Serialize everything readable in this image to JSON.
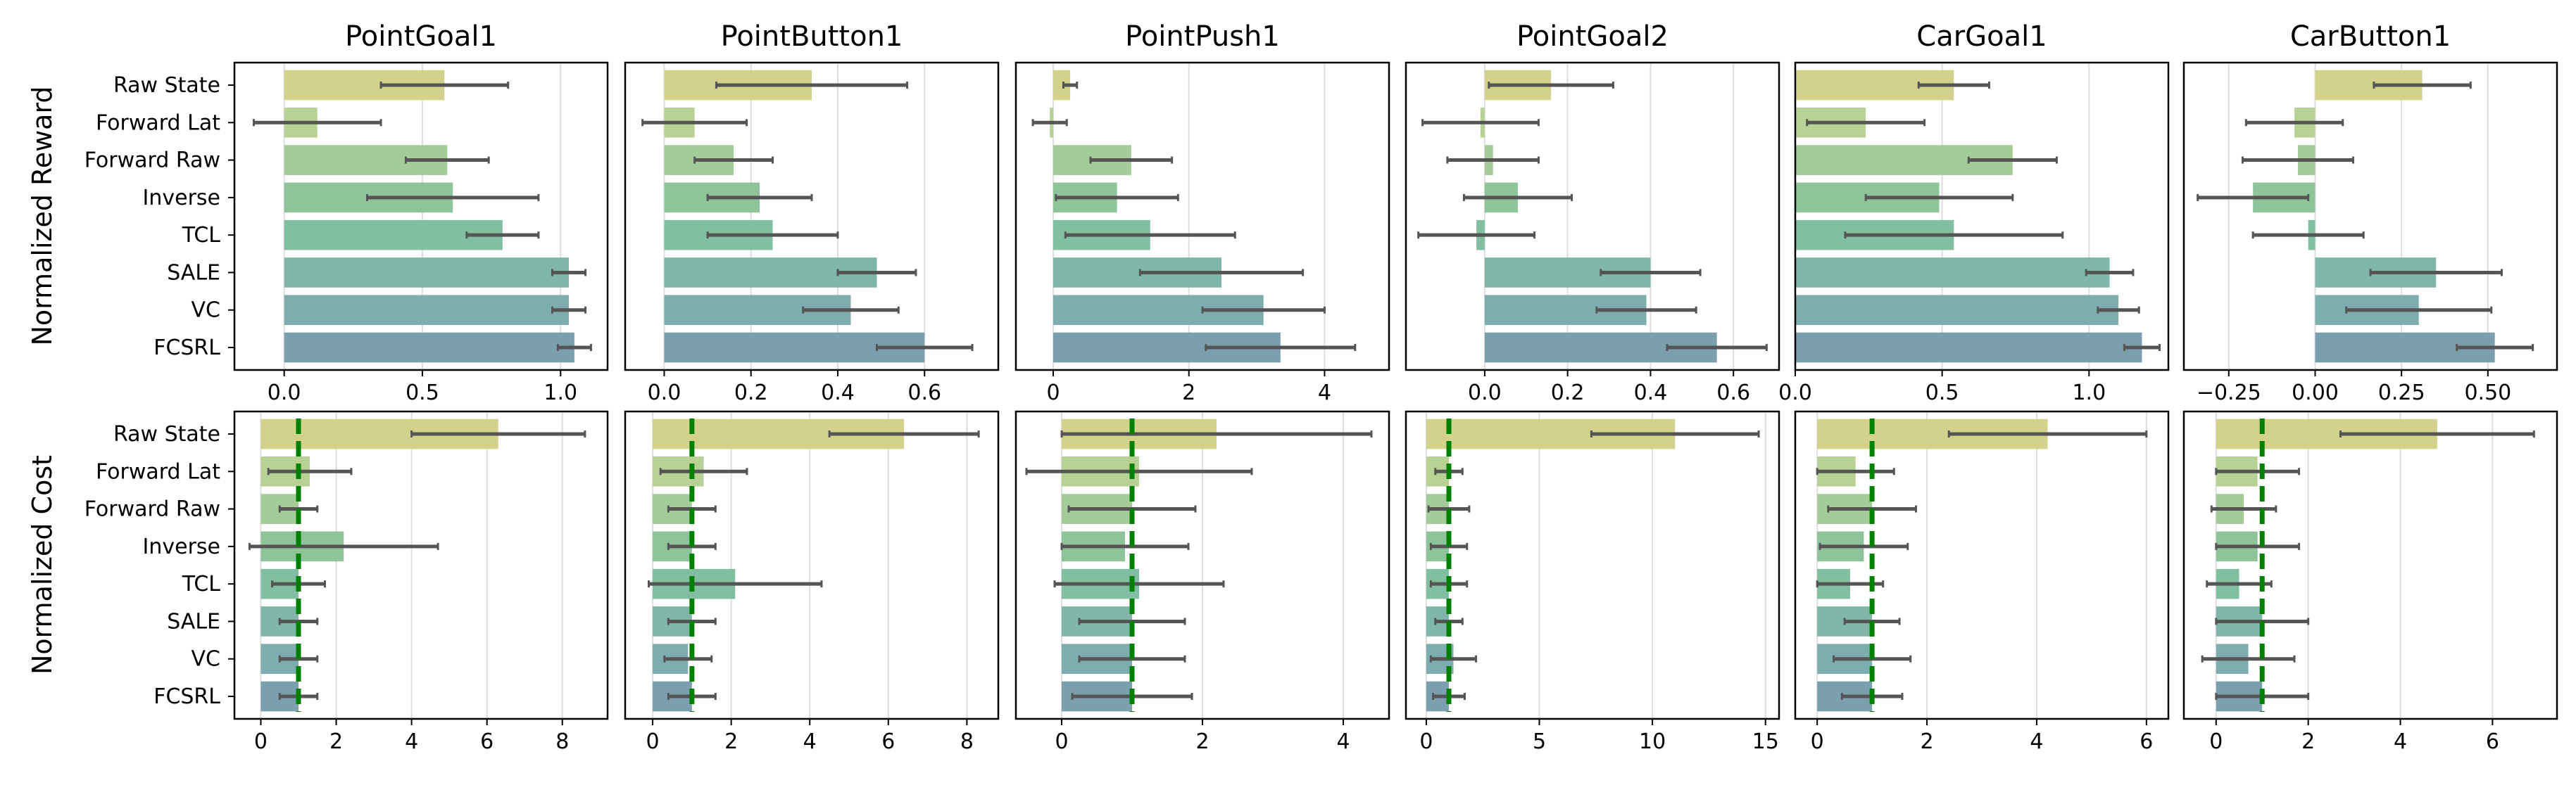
{
  "figure": {
    "row_labels": [
      "Normalized Reward",
      "Normalized Cost"
    ],
    "threshold_color": "#008000"
  },
  "methods": [
    "Raw State",
    "Forward Lat",
    "Forward Raw",
    "Inverse",
    "TCL",
    "SALE",
    "VC",
    "FCSRL"
  ],
  "colors": [
    "#d2d28c",
    "#b8d296",
    "#a4cc98",
    "#8ec499",
    "#82bea1",
    "#7fb6a9",
    "#7dadaf",
    "#7c9fb0"
  ],
  "chart_data": [
    {
      "type": "bar",
      "orientation": "horizontal",
      "panel": "reward",
      "title": "PointGoal1",
      "categories": [
        "Raw State",
        "Forward Lat",
        "Forward Raw",
        "Inverse",
        "TCL",
        "SALE",
        "VC",
        "FCSRL"
      ],
      "values": [
        0.58,
        0.12,
        0.59,
        0.61,
        0.79,
        1.03,
        1.03,
        1.05
      ],
      "errors": [
        0.23,
        0.23,
        0.15,
        0.31,
        0.13,
        0.06,
        0.06,
        0.06
      ],
      "xlim": [
        -0.18,
        1.17
      ],
      "xticks": [
        0.0,
        0.5,
        1.0
      ],
      "xtick_labels": [
        "0.0",
        "0.5",
        "1.0"
      ]
    },
    {
      "type": "bar",
      "orientation": "horizontal",
      "panel": "reward",
      "title": "PointButton1",
      "categories": [
        "Raw State",
        "Forward Lat",
        "Forward Raw",
        "Inverse",
        "TCL",
        "SALE",
        "VC",
        "FCSRL"
      ],
      "values": [
        0.34,
        0.07,
        0.16,
        0.22,
        0.25,
        0.49,
        0.43,
        0.6
      ],
      "errors": [
        0.22,
        0.12,
        0.09,
        0.12,
        0.15,
        0.09,
        0.11,
        0.11
      ],
      "xlim": [
        -0.09,
        0.77
      ],
      "xticks": [
        0.0,
        0.2,
        0.4,
        0.6
      ],
      "xtick_labels": [
        "0.0",
        "0.2",
        "0.4",
        "0.6"
      ]
    },
    {
      "type": "bar",
      "orientation": "horizontal",
      "panel": "reward",
      "title": "PointPush1",
      "categories": [
        "Raw State",
        "Forward Lat",
        "Forward Raw",
        "Inverse",
        "TCL",
        "SALE",
        "VC",
        "FCSRL"
      ],
      "values": [
        0.25,
        -0.05,
        1.15,
        0.94,
        1.43,
        2.48,
        3.1,
        3.35
      ],
      "errors": [
        0.1,
        0.25,
        0.6,
        0.9,
        1.25,
        1.2,
        0.9,
        1.1
      ],
      "xlim": [
        -0.55,
        4.95
      ],
      "xticks": [
        0,
        2,
        4
      ],
      "xtick_labels": [
        "0",
        "2",
        "4"
      ]
    },
    {
      "type": "bar",
      "orientation": "horizontal",
      "panel": "reward",
      "title": "PointGoal2",
      "categories": [
        "Raw State",
        "Forward Lat",
        "Forward Raw",
        "Inverse",
        "TCL",
        "SALE",
        "VC",
        "FCSRL"
      ],
      "values": [
        0.16,
        -0.01,
        0.02,
        0.08,
        -0.02,
        0.4,
        0.39,
        0.56
      ],
      "errors": [
        0.15,
        0.14,
        0.11,
        0.13,
        0.14,
        0.12,
        0.12,
        0.12
      ],
      "xlim": [
        -0.19,
        0.71
      ],
      "xticks": [
        0.0,
        0.2,
        0.4,
        0.6
      ],
      "xtick_labels": [
        "0.0",
        "0.2",
        "0.4",
        "0.6"
      ]
    },
    {
      "type": "bar",
      "orientation": "horizontal",
      "panel": "reward",
      "title": "CarGoal1",
      "categories": [
        "Raw State",
        "Forward Lat",
        "Forward Raw",
        "Inverse",
        "TCL",
        "SALE",
        "VC",
        "FCSRL"
      ],
      "values": [
        0.54,
        0.24,
        0.74,
        0.49,
        0.54,
        1.07,
        1.1,
        1.18
      ],
      "errors": [
        0.12,
        0.2,
        0.15,
        0.25,
        0.37,
        0.08,
        0.07,
        0.06
      ],
      "xlim": [
        0.0,
        1.27
      ],
      "xticks": [
        0.0,
        0.5,
        1.0
      ],
      "xtick_labels": [
        "0.0",
        "0.5",
        "1.0"
      ]
    },
    {
      "type": "bar",
      "orientation": "horizontal",
      "panel": "reward",
      "title": "CarButton1",
      "categories": [
        "Raw State",
        "Forward Lat",
        "Forward Raw",
        "Inverse",
        "TCL",
        "SALE",
        "VC",
        "FCSRL"
      ],
      "values": [
        0.31,
        -0.06,
        -0.05,
        -0.18,
        -0.02,
        0.35,
        0.3,
        0.52
      ],
      "errors": [
        0.14,
        0.14,
        0.16,
        0.16,
        0.16,
        0.19,
        0.21,
        0.11
      ],
      "xlim": [
        -0.38,
        0.7
      ],
      "xticks": [
        -0.25,
        0.0,
        0.25,
        0.5
      ],
      "xtick_labels": [
        "−0.25",
        "0.00",
        "0.25",
        "0.50"
      ]
    },
    {
      "type": "bar",
      "orientation": "horizontal",
      "panel": "cost",
      "threshold": 1.0,
      "categories": [
        "Raw State",
        "Forward Lat",
        "Forward Raw",
        "Inverse",
        "TCL",
        "SALE",
        "VC",
        "FCSRL"
      ],
      "values": [
        6.3,
        1.3,
        1.0,
        2.2,
        1.0,
        1.0,
        1.0,
        1.0
      ],
      "errors": [
        2.3,
        1.1,
        0.5,
        2.5,
        0.7,
        0.5,
        0.5,
        0.5
      ],
      "xlim": [
        -0.7,
        9.2
      ],
      "xticks": [
        0,
        2,
        4,
        6,
        8
      ],
      "xtick_labels": [
        "0",
        "2",
        "4",
        "6",
        "8"
      ]
    },
    {
      "type": "bar",
      "orientation": "horizontal",
      "panel": "cost",
      "threshold": 1.0,
      "categories": [
        "Raw State",
        "Forward Lat",
        "Forward Raw",
        "Inverse",
        "TCL",
        "SALE",
        "VC",
        "FCSRL"
      ],
      "values": [
        6.4,
        1.3,
        1.0,
        1.0,
        2.1,
        1.0,
        0.9,
        1.0
      ],
      "errors": [
        1.9,
        1.1,
        0.6,
        0.6,
        2.2,
        0.6,
        0.6,
        0.6
      ],
      "xlim": [
        -0.7,
        8.8
      ],
      "xticks": [
        0,
        2,
        4,
        6,
        8
      ],
      "xtick_labels": [
        "0",
        "2",
        "4",
        "6",
        "8"
      ]
    },
    {
      "type": "bar",
      "orientation": "horizontal",
      "panel": "cost",
      "threshold": 1.0,
      "categories": [
        "Raw State",
        "Forward Lat",
        "Forward Raw",
        "Inverse",
        "TCL",
        "SALE",
        "VC",
        "FCSRL"
      ],
      "values": [
        2.2,
        1.1,
        1.0,
        0.9,
        1.1,
        1.0,
        1.0,
        1.0
      ],
      "errors": [
        2.2,
        1.6,
        0.9,
        0.9,
        1.2,
        0.75,
        0.75,
        0.85
      ],
      "xlim": [
        -0.65,
        4.65
      ],
      "xticks": [
        0,
        2,
        4
      ],
      "xtick_labels": [
        "0",
        "2",
        "4"
      ]
    },
    {
      "type": "bar",
      "orientation": "horizontal",
      "panel": "cost",
      "threshold": 1.0,
      "categories": [
        "Raw State",
        "Forward Lat",
        "Forward Raw",
        "Inverse",
        "TCL",
        "SALE",
        "VC",
        "FCSRL"
      ],
      "values": [
        11.0,
        1.0,
        1.0,
        1.0,
        1.0,
        1.0,
        1.2,
        1.0
      ],
      "errors": [
        3.7,
        0.6,
        0.9,
        0.8,
        0.8,
        0.6,
        1.0,
        0.7
      ],
      "xlim": [
        -0.9,
        15.6
      ],
      "xticks": [
        0,
        5,
        10,
        15
      ],
      "xtick_labels": [
        "0",
        "5",
        "10",
        "15"
      ]
    },
    {
      "type": "bar",
      "orientation": "horizontal",
      "panel": "cost",
      "threshold": 1.0,
      "categories": [
        "Raw State",
        "Forward Lat",
        "Forward Raw",
        "Inverse",
        "TCL",
        "SALE",
        "VC",
        "FCSRL"
      ],
      "values": [
        4.2,
        0.7,
        1.0,
        0.85,
        0.6,
        1.0,
        1.0,
        1.0
      ],
      "errors": [
        1.8,
        0.7,
        0.8,
        0.8,
        0.6,
        0.5,
        0.7,
        0.55
      ],
      "xlim": [
        -0.4,
        6.4
      ],
      "xticks": [
        0,
        2,
        4,
        6
      ],
      "xtick_labels": [
        "0",
        "2",
        "4",
        "6"
      ]
    },
    {
      "type": "bar",
      "orientation": "horizontal",
      "panel": "cost",
      "threshold": 1.0,
      "categories": [
        "Raw State",
        "Forward Lat",
        "Forward Raw",
        "Inverse",
        "TCL",
        "SALE",
        "VC",
        "FCSRL"
      ],
      "values": [
        4.8,
        0.9,
        0.6,
        0.9,
        0.5,
        1.0,
        0.7,
        1.0
      ],
      "errors": [
        2.1,
        0.9,
        0.7,
        0.9,
        0.7,
        1.0,
        1.0,
        1.0
      ],
      "xlim": [
        -0.7,
        7.4
      ],
      "xticks": [
        0,
        2,
        4,
        6
      ],
      "xtick_labels": [
        "0",
        "2",
        "4",
        "6"
      ]
    }
  ]
}
